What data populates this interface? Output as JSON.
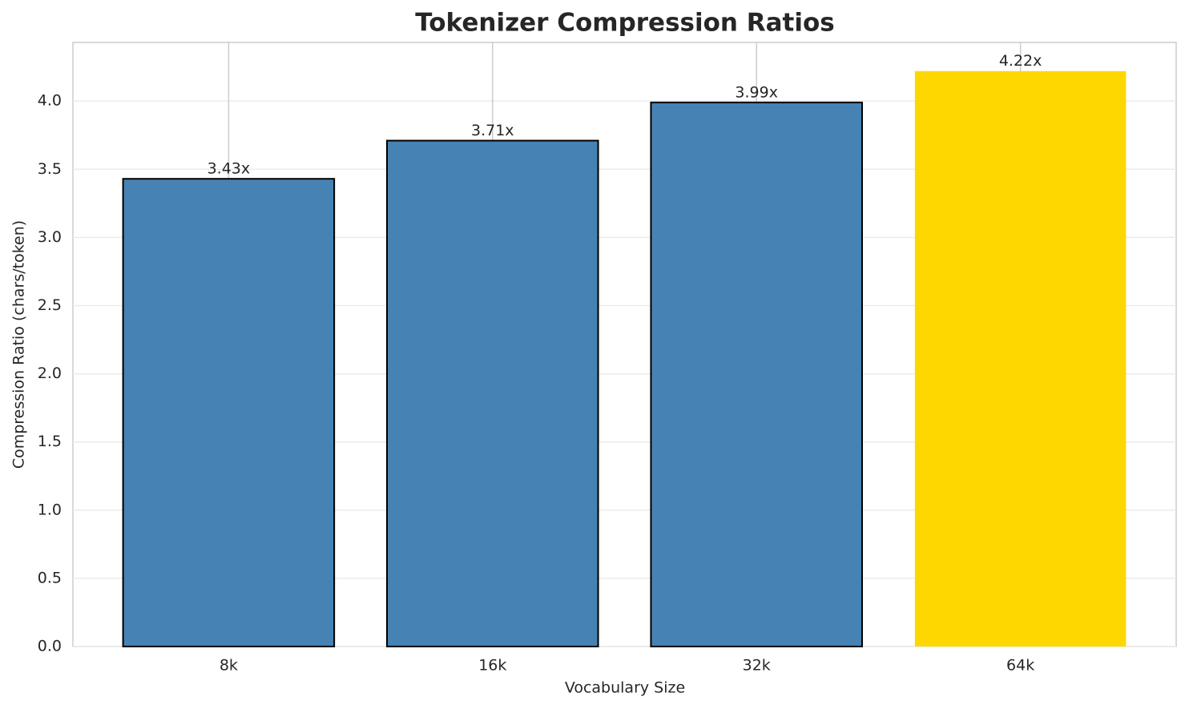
{
  "chart_data": {
    "type": "bar",
    "title": "Tokenizer Compression Ratios",
    "x_label": "Vocabulary Size",
    "y_label": "Compression Ratio (chars/token)",
    "categories": [
      "8k",
      "16k",
      "32k",
      "64k"
    ],
    "values": [
      3.43,
      3.71,
      3.99,
      4.22
    ],
    "value_labels": [
      "3.43x",
      "3.71x",
      "3.99x",
      "4.22x"
    ],
    "colors": [
      "#4682b4",
      "#4682b4",
      "#4682b4",
      "#ffd700"
    ],
    "edge_colors": [
      "#000000",
      "#000000",
      "#000000",
      "none"
    ],
    "ylim": [
      0,
      4.43
    ],
    "yticks": [
      {
        "value": 0,
        "label": "0.0"
      },
      0.5,
      {
        "value": 1,
        "label": "1.0"
      },
      1.5,
      {
        "value": 2,
        "label": "2.0"
      },
      2.5,
      {
        "value": 3,
        "label": "3.0"
      },
      3.5,
      {
        "value": 4,
        "label": "4.0"
      }
    ],
    "grid": true
  }
}
